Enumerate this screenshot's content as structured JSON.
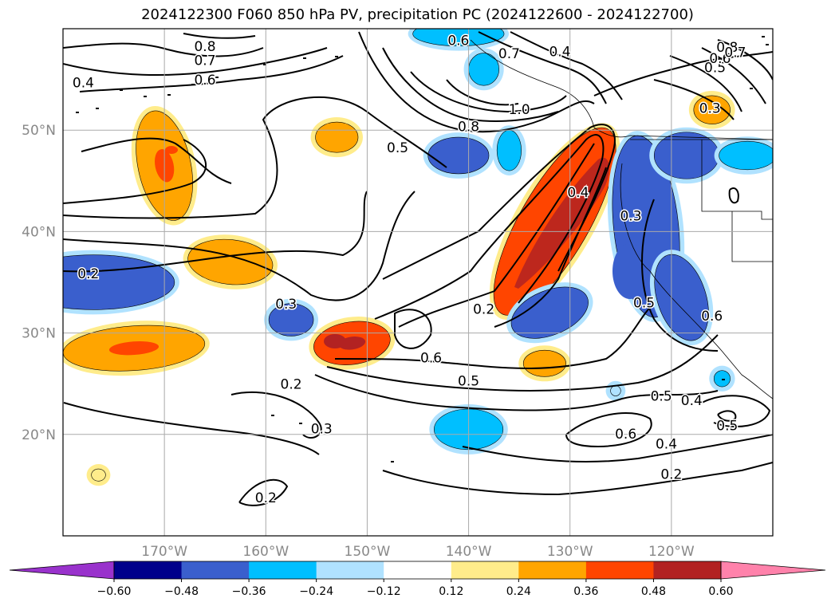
{
  "chart_data": {
    "type": "contour map",
    "title": "2024122300 F060 850 hPa PV, precipitation PC (2024122600 - 2024122700)",
    "extent": {
      "lon_min": -180,
      "lon_max": -110,
      "lat_min": 10,
      "lat_max": 60
    },
    "lon_ticks": [
      {
        "value": -170,
        "label": "170°W"
      },
      {
        "value": -160,
        "label": "160°W"
      },
      {
        "value": -150,
        "label": "150°W"
      },
      {
        "value": -140,
        "label": "140°W"
      },
      {
        "value": -130,
        "label": "130°W"
      },
      {
        "value": -120,
        "label": "120°W"
      }
    ],
    "lat_ticks": [
      {
        "value": 50,
        "label": "50°N"
      },
      {
        "value": 40,
        "label": "40°N"
      },
      {
        "value": 30,
        "label": "30°N"
      },
      {
        "value": 20,
        "label": "20°N"
      }
    ],
    "grid": true,
    "colorbar": {
      "orientation": "horizontal",
      "extend": "both",
      "boundaries": [
        -0.6,
        -0.48,
        -0.36,
        -0.24,
        -0.12,
        0.12,
        0.24,
        0.36,
        0.48,
        0.6
      ],
      "tick_labels": [
        "−0.60",
        "−0.48",
        "−0.36",
        "−0.24",
        "−0.12",
        "0.12",
        "0.24",
        "0.36",
        "0.48",
        "0.60"
      ],
      "colors": [
        "#9932cc",
        "#00008b",
        "#3a5fcd",
        "#00bfff",
        "#b0e2ff",
        "#ffffff",
        "#ffec8b",
        "#ffa500",
        "#ff4500",
        "#b22222",
        "#ff82ab"
      ]
    },
    "precip_blobs": [
      {
        "lon": -170,
        "lat": 46.5,
        "rlon": 2.6,
        "rlat": 5.5,
        "rot": -12,
        "value": 0.3,
        "peak": 0.4
      },
      {
        "lon": -163.5,
        "lat": 37,
        "rlon": 4.2,
        "rlat": 2.2,
        "rot": 6,
        "value": 0.3
      },
      {
        "lon": -173,
        "lat": 28.5,
        "rlon": 7,
        "rlat": 2.2,
        "rot": -4,
        "value": 0.3,
        "peak": 0.38
      },
      {
        "lon": -153,
        "lat": 49.3,
        "rlon": 2.1,
        "rlat": 1.5,
        "rot": 0,
        "value": 0.3
      },
      {
        "lon": -151.5,
        "lat": 29,
        "rlon": 3.8,
        "rlat": 2.1,
        "rot": -8,
        "value": 0.4,
        "peak": 0.5
      },
      {
        "lon": -131.5,
        "lat": 41,
        "rlon": 3.4,
        "rlat": 10.5,
        "rot": 30,
        "value": 0.42
      },
      {
        "lon": -132.5,
        "lat": 27,
        "rlon": 2.1,
        "rlat": 1.3,
        "rot": 0,
        "value": 0.3
      },
      {
        "lon": -176.5,
        "lat": 16,
        "rlon": 0.7,
        "rlat": 0.6,
        "rot": 0,
        "value": 0.2
      },
      {
        "lon": -116,
        "lat": 52,
        "rlon": 1.8,
        "rlat": 1.4,
        "rot": 0,
        "value": 0.3
      },
      {
        "lon": -177,
        "lat": 35,
        "rlon": 8,
        "rlat": 2.7,
        "rot": 0,
        "value": -0.4
      },
      {
        "lon": -157.5,
        "lat": 31.3,
        "rlon": 2.2,
        "rlat": 1.6,
        "rot": 0,
        "value": -0.4
      },
      {
        "lon": -141,
        "lat": 47.5,
        "rlon": 3,
        "rlat": 1.8,
        "rot": 0,
        "value": -0.38
      },
      {
        "lon": -136,
        "lat": 48,
        "rlon": 1.2,
        "rlat": 2,
        "rot": 0,
        "value": -0.26
      },
      {
        "lon": -140,
        "lat": 20.5,
        "rlon": 3.4,
        "rlat": 2,
        "rot": 0,
        "value": -0.28
      },
      {
        "lon": -132,
        "lat": 32,
        "rlon": 4,
        "rlat": 2.2,
        "rot": -22,
        "value": -0.38
      },
      {
        "lon": -138.5,
        "lat": 56,
        "rlon": 1.5,
        "rlat": 1.6,
        "rot": 0,
        "value": -0.26
      },
      {
        "lon": -141,
        "lat": 59.5,
        "rlon": 4.5,
        "rlat": 1.2,
        "rot": 0,
        "value": -0.3
      },
      {
        "lon": -122.5,
        "lat": 40.5,
        "rlon": 3.2,
        "rlat": 9,
        "rot": -6,
        "value": -0.44
      },
      {
        "lon": -119,
        "lat": 33.5,
        "rlon": 2.4,
        "rlat": 4.4,
        "rot": -18,
        "value": -0.44
      },
      {
        "lon": -118.5,
        "lat": 47.5,
        "rlon": 3.2,
        "rlat": 2.3,
        "rot": 0,
        "value": -0.4
      },
      {
        "lon": -112.5,
        "lat": 47.5,
        "rlon": 2.8,
        "rlat": 1.4,
        "rot": 0,
        "value": -0.26
      },
      {
        "lon": -115,
        "lat": 25.5,
        "rlon": 0.8,
        "rlat": 0.8,
        "rot": 0,
        "value": -0.26
      },
      {
        "lon": -125.5,
        "lat": 24.3,
        "rlon": 0.5,
        "rlat": 0.5,
        "rot": 0,
        "value": -0.2
      }
    ],
    "pv_contour_labels": [
      {
        "text": "0.8",
        "lon": -166,
        "lat": 58.2
      },
      {
        "text": "0.7",
        "lon": -166,
        "lat": 56.8
      },
      {
        "text": "0.6",
        "lon": -166,
        "lat": 54.9
      },
      {
        "text": "0.4",
        "lon": -178,
        "lat": 54.6
      },
      {
        "text": "0.6",
        "lon": -141,
        "lat": 58.8
      },
      {
        "text": "0.7",
        "lon": -136,
        "lat": 57.5
      },
      {
        "text": "0.4",
        "lon": -131,
        "lat": 57.7
      },
      {
        "text": "1.0",
        "lon": -135,
        "lat": 52
      },
      {
        "text": "0.8",
        "lon": -140,
        "lat": 50.3
      },
      {
        "text": "0.5",
        "lon": -147,
        "lat": 48.2
      },
      {
        "text": "0.4",
        "lon": -129.2,
        "lat": 43.8
      },
      {
        "text": "0.3",
        "lon": -124,
        "lat": 41.5
      },
      {
        "text": "0.2",
        "lon": -177.5,
        "lat": 35.8
      },
      {
        "text": "0.3",
        "lon": -158,
        "lat": 32.8
      },
      {
        "text": "0.2",
        "lon": -138.5,
        "lat": 32.3
      },
      {
        "text": "0.5",
        "lon": -122.7,
        "lat": 32.9
      },
      {
        "text": "0.6",
        "lon": -116,
        "lat": 31.6
      },
      {
        "text": "0.6",
        "lon": -143.7,
        "lat": 27.5
      },
      {
        "text": "0.5",
        "lon": -140,
        "lat": 25.2
      },
      {
        "text": "0.2",
        "lon": -157.5,
        "lat": 24.9
      },
      {
        "text": "0.3",
        "lon": -154.5,
        "lat": 20.5
      },
      {
        "text": "0.5",
        "lon": -121,
        "lat": 23.7
      },
      {
        "text": "0.4",
        "lon": -118,
        "lat": 23.3
      },
      {
        "text": "0.6",
        "lon": -124.5,
        "lat": 20
      },
      {
        "text": "0.4",
        "lon": -120.5,
        "lat": 19
      },
      {
        "text": "0.5",
        "lon": -114.5,
        "lat": 20.8
      },
      {
        "text": "0.2",
        "lon": -120,
        "lat": 16
      },
      {
        "text": "0.2",
        "lon": -160,
        "lat": 13.7
      },
      {
        "text": "0.3",
        "lon": -116.2,
        "lat": 52.1
      },
      {
        "text": "0.5",
        "lon": -115.7,
        "lat": 56.1
      },
      {
        "text": "0.6",
        "lon": -115.2,
        "lat": 57
      },
      {
        "text": "0.8",
        "lon": -114.5,
        "lat": 58.1
      },
      {
        "text": "0.7",
        "lon": -113.7,
        "lat": 57.6
      }
    ]
  }
}
